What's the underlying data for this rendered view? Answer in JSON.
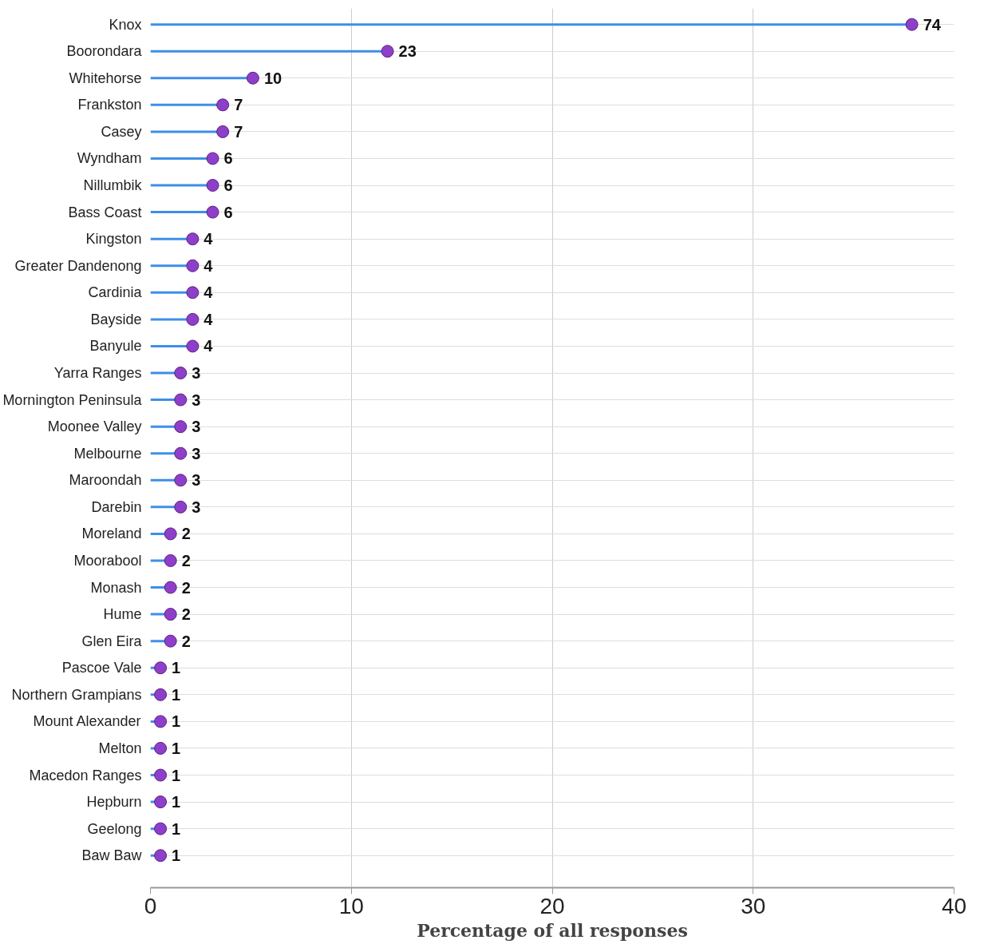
{
  "chart_data": {
    "type": "lollipop",
    "orientation": "horizontal",
    "xlabel": "Percentage of all responses",
    "categories": [
      "Knox",
      "Boorondara",
      "Whitehorse",
      "Frankston",
      "Casey",
      "Wyndham",
      "Nillumbik",
      "Bass Coast",
      "Kingston",
      "Greater Dandenong",
      "Cardinia",
      "Bayside",
      "Banyule",
      "Yarra Ranges",
      "Mornington Peninsula",
      "Moonee Valley",
      "Melbourne",
      "Maroondah",
      "Darebin",
      "Moreland",
      "Moorabool",
      "Monash",
      "Hume",
      "Glen Eira",
      "Pascoe Vale",
      "Northern Grampians",
      "Mount Alexander",
      "Melton",
      "Macedon Ranges",
      "Hepburn",
      "Geelong",
      "Baw Baw"
    ],
    "series": [
      {
        "color": "#8e3fc9",
        "values": [
          37.9,
          11.8,
          5.1,
          3.6,
          3.6,
          3.1,
          3.1,
          3.1,
          2.1,
          2.1,
          2.1,
          2.1,
          2.1,
          1.5,
          1.5,
          1.5,
          1.5,
          1.5,
          1.5,
          1.0,
          1.0,
          1.0,
          1.0,
          1.0,
          0.5,
          0.5,
          0.5,
          0.5,
          0.5,
          0.5,
          0.5,
          0.5
        ]
      }
    ],
    "annotations": [
      {
        "text": "74",
        "x": 37.9,
        "y": "Knox"
      },
      {
        "text": "23",
        "x": 11.8,
        "y": "Boorondara"
      },
      {
        "text": "10",
        "x": 5.1,
        "y": "Whitehorse"
      },
      {
        "text": "7",
        "x": 3.6,
        "y": "Frankston"
      },
      {
        "text": "7",
        "x": 3.6,
        "y": "Casey"
      },
      {
        "text": "6",
        "x": 3.1,
        "y": "Wyndham"
      },
      {
        "text": "6",
        "x": 3.1,
        "y": "Nillumbik"
      },
      {
        "text": "6",
        "x": 3.1,
        "y": "Bass Coast"
      },
      {
        "text": "4",
        "x": 2.1,
        "y": "Kingston"
      },
      {
        "text": "4",
        "x": 2.1,
        "y": "Greater Dandenong"
      },
      {
        "text": "4",
        "x": 2.1,
        "y": "Cardinia"
      },
      {
        "text": "4",
        "x": 2.1,
        "y": "Bayside"
      },
      {
        "text": "4",
        "x": 2.1,
        "y": "Banyule"
      },
      {
        "text": "3",
        "x": 1.5,
        "y": "Yarra Ranges"
      },
      {
        "text": "3",
        "x": 1.5,
        "y": "Mornington Peninsula"
      },
      {
        "text": "3",
        "x": 1.5,
        "y": "Moonee Valley"
      },
      {
        "text": "3",
        "x": 1.5,
        "y": "Melbourne"
      },
      {
        "text": "3",
        "x": 1.5,
        "y": "Maroondah"
      },
      {
        "text": "3",
        "x": 1.5,
        "y": "Darebin"
      },
      {
        "text": "2",
        "x": 1.0,
        "y": "Moreland"
      },
      {
        "text": "2",
        "x": 1.0,
        "y": "Moorabool"
      },
      {
        "text": "2",
        "x": 1.0,
        "y": "Monash"
      },
      {
        "text": "2",
        "x": 1.0,
        "y": "Hume"
      },
      {
        "text": "2",
        "x": 1.0,
        "y": "Glen Eira"
      },
      {
        "text": "1",
        "x": 0.5,
        "y": "Pascoe Vale"
      },
      {
        "text": "1",
        "x": 0.5,
        "y": "Northern Grampians"
      },
      {
        "text": "1",
        "x": 0.5,
        "y": "Mount Alexander"
      },
      {
        "text": "1",
        "x": 0.5,
        "y": "Melton"
      },
      {
        "text": "1",
        "x": 0.5,
        "y": "Macedon Ranges"
      },
      {
        "text": "1",
        "x": 0.5,
        "y": "Hepburn"
      },
      {
        "text": "1",
        "x": 0.5,
        "y": "Geelong"
      },
      {
        "text": "1",
        "x": 0.5,
        "y": "Baw Baw"
      }
    ],
    "xlim": [
      0,
      40
    ],
    "xticks": [
      0,
      10,
      20,
      30,
      40
    ],
    "grid": true,
    "marker": "circle"
  }
}
